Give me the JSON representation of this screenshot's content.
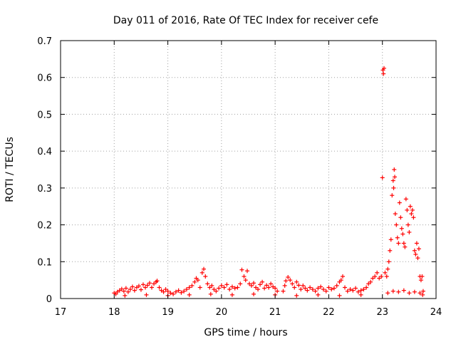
{
  "chart_data": {
    "type": "scatter",
    "title": "Day 011 of 2016, Rate Of TEC Index for receiver cefe",
    "xlabel": "GPS time / hours",
    "ylabel": "ROTI / TECUs",
    "xlim": [
      17,
      24
    ],
    "ylim": [
      0,
      0.7
    ],
    "xticks": [
      17,
      18,
      19,
      20,
      21,
      22,
      23,
      24
    ],
    "xtick_labels": [
      "17",
      "18",
      "19",
      "20",
      "21",
      "22",
      "23",
      "24"
    ],
    "yticks": [
      0,
      0.1,
      0.2,
      0.3,
      0.4,
      0.5,
      0.6,
      0.7
    ],
    "ytick_labels": [
      "0",
      "0.1",
      "0.2",
      "0.3",
      "0.4",
      "0.5",
      "0.6",
      "0.7"
    ],
    "grid": true,
    "marker": "+",
    "series_color": "#ff0000",
    "series": [
      {
        "name": "ROTI",
        "points": [
          [
            18.0,
            0.015
          ],
          [
            18.03,
            0.012
          ],
          [
            18.06,
            0.018
          ],
          [
            18.1,
            0.022
          ],
          [
            18.14,
            0.026
          ],
          [
            18.18,
            0.02
          ],
          [
            18.22,
            0.028
          ],
          [
            18.26,
            0.018
          ],
          [
            18.3,
            0.025
          ],
          [
            18.34,
            0.032
          ],
          [
            18.38,
            0.022
          ],
          [
            18.42,
            0.03
          ],
          [
            18.46,
            0.034
          ],
          [
            18.5,
            0.024
          ],
          [
            18.54,
            0.038
          ],
          [
            18.58,
            0.03
          ],
          [
            18.62,
            0.036
          ],
          [
            18.66,
            0.042
          ],
          [
            18.7,
            0.03
          ],
          [
            18.74,
            0.04
          ],
          [
            18.78,
            0.045
          ],
          [
            18.8,
            0.048
          ],
          [
            18.84,
            0.03
          ],
          [
            18.88,
            0.022
          ],
          [
            18.92,
            0.018
          ],
          [
            18.96,
            0.025
          ],
          [
            19.0,
            0.02
          ],
          [
            19.05,
            0.015
          ],
          [
            19.1,
            0.012
          ],
          [
            19.15,
            0.018
          ],
          [
            19.2,
            0.022
          ],
          [
            19.25,
            0.016
          ],
          [
            19.3,
            0.02
          ],
          [
            19.35,
            0.025
          ],
          [
            19.4,
            0.03
          ],
          [
            19.45,
            0.035
          ],
          [
            19.5,
            0.045
          ],
          [
            19.53,
            0.055
          ],
          [
            19.56,
            0.05
          ],
          [
            19.6,
            0.03
          ],
          [
            19.64,
            0.07
          ],
          [
            19.67,
            0.08
          ],
          [
            19.7,
            0.06
          ],
          [
            19.74,
            0.04
          ],
          [
            19.78,
            0.03
          ],
          [
            19.82,
            0.035
          ],
          [
            19.86,
            0.025
          ],
          [
            19.9,
            0.02
          ],
          [
            19.95,
            0.028
          ],
          [
            20.0,
            0.035
          ],
          [
            20.05,
            0.03
          ],
          [
            20.1,
            0.038
          ],
          [
            20.15,
            0.025
          ],
          [
            20.2,
            0.032
          ],
          [
            20.25,
            0.028
          ],
          [
            20.3,
            0.03
          ],
          [
            20.35,
            0.04
          ],
          [
            20.38,
            0.078
          ],
          [
            20.42,
            0.06
          ],
          [
            20.45,
            0.05
          ],
          [
            20.48,
            0.075
          ],
          [
            20.52,
            0.04
          ],
          [
            20.56,
            0.035
          ],
          [
            20.6,
            0.042
          ],
          [
            20.64,
            0.03
          ],
          [
            20.68,
            0.025
          ],
          [
            20.72,
            0.038
          ],
          [
            20.76,
            0.045
          ],
          [
            20.8,
            0.028
          ],
          [
            20.84,
            0.036
          ],
          [
            20.88,
            0.03
          ],
          [
            20.92,
            0.04
          ],
          [
            20.96,
            0.032
          ],
          [
            21.0,
            0.028
          ],
          [
            21.04,
            0.02
          ],
          [
            21.15,
            0.02
          ],
          [
            21.18,
            0.035
          ],
          [
            21.2,
            0.048
          ],
          [
            21.24,
            0.058
          ],
          [
            21.28,
            0.05
          ],
          [
            21.32,
            0.04
          ],
          [
            21.36,
            0.03
          ],
          [
            21.4,
            0.045
          ],
          [
            21.44,
            0.036
          ],
          [
            21.48,
            0.025
          ],
          [
            21.52,
            0.035
          ],
          [
            21.56,
            0.028
          ],
          [
            21.6,
            0.022
          ],
          [
            21.65,
            0.03
          ],
          [
            21.7,
            0.025
          ],
          [
            21.75,
            0.02
          ],
          [
            21.8,
            0.028
          ],
          [
            21.85,
            0.032
          ],
          [
            21.9,
            0.025
          ],
          [
            21.95,
            0.02
          ],
          [
            22.0,
            0.03
          ],
          [
            22.05,
            0.025
          ],
          [
            22.1,
            0.028
          ],
          [
            22.15,
            0.035
          ],
          [
            22.2,
            0.045
          ],
          [
            22.23,
            0.05
          ],
          [
            22.26,
            0.06
          ],
          [
            22.3,
            0.03
          ],
          [
            22.35,
            0.02
          ],
          [
            22.4,
            0.025
          ],
          [
            22.45,
            0.022
          ],
          [
            22.5,
            0.028
          ],
          [
            22.55,
            0.018
          ],
          [
            22.6,
            0.022
          ],
          [
            22.65,
            0.025
          ],
          [
            22.7,
            0.03
          ],
          [
            22.74,
            0.04
          ],
          [
            22.78,
            0.045
          ],
          [
            22.82,
            0.055
          ],
          [
            22.86,
            0.06
          ],
          [
            22.9,
            0.07
          ],
          [
            22.94,
            0.055
          ],
          [
            22.98,
            0.06
          ],
          [
            23.0,
            0.328
          ],
          [
            23.01,
            0.62
          ],
          [
            23.02,
            0.61
          ],
          [
            23.03,
            0.625
          ],
          [
            23.05,
            0.07
          ],
          [
            23.08,
            0.06
          ],
          [
            23.1,
            0.08
          ],
          [
            23.12,
            0.1
          ],
          [
            23.14,
            0.13
          ],
          [
            23.16,
            0.16
          ],
          [
            23.18,
            0.28
          ],
          [
            23.2,
            0.32
          ],
          [
            23.21,
            0.3
          ],
          [
            23.22,
            0.35
          ],
          [
            23.23,
            0.33
          ],
          [
            23.24,
            0.23
          ],
          [
            23.26,
            0.2
          ],
          [
            23.28,
            0.165
          ],
          [
            23.3,
            0.15
          ],
          [
            23.32,
            0.26
          ],
          [
            23.34,
            0.22
          ],
          [
            23.36,
            0.19
          ],
          [
            23.38,
            0.175
          ],
          [
            23.4,
            0.15
          ],
          [
            23.42,
            0.14
          ],
          [
            23.44,
            0.27
          ],
          [
            23.46,
            0.24
          ],
          [
            23.48,
            0.2
          ],
          [
            23.5,
            0.18
          ],
          [
            23.52,
            0.25
          ],
          [
            23.54,
            0.23
          ],
          [
            23.56,
            0.24
          ],
          [
            23.58,
            0.22
          ],
          [
            23.6,
            0.13
          ],
          [
            23.62,
            0.12
          ],
          [
            23.64,
            0.15
          ],
          [
            23.66,
            0.11
          ],
          [
            23.68,
            0.135
          ],
          [
            23.7,
            0.06
          ],
          [
            23.72,
            0.05
          ],
          [
            23.74,
            0.06
          ],
          [
            23.76,
            0.02
          ],
          [
            23.1,
            0.015
          ],
          [
            23.2,
            0.02
          ],
          [
            23.3,
            0.018
          ],
          [
            23.4,
            0.022
          ],
          [
            23.5,
            0.015
          ],
          [
            23.6,
            0.018
          ],
          [
            23.7,
            0.015
          ],
          [
            23.75,
            0.01
          ],
          [
            18.2,
            0.008
          ],
          [
            18.6,
            0.01
          ],
          [
            19.0,
            0.008
          ],
          [
            19.4,
            0.01
          ],
          [
            19.8,
            0.012
          ],
          [
            20.2,
            0.01
          ],
          [
            20.6,
            0.012
          ],
          [
            21.0,
            0.01
          ],
          [
            21.4,
            0.008
          ],
          [
            21.8,
            0.01
          ],
          [
            22.2,
            0.008
          ],
          [
            22.6,
            0.01
          ]
        ]
      }
    ]
  }
}
